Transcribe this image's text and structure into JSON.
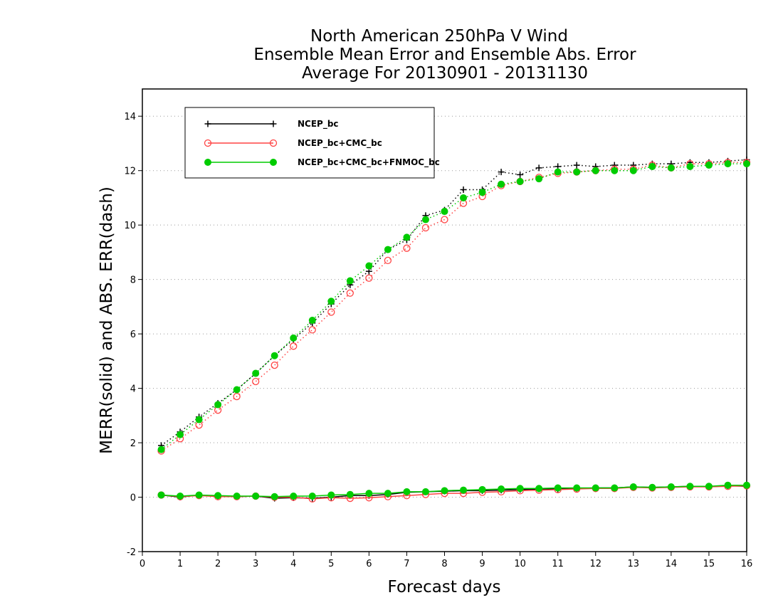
{
  "chart_data": {
    "type": "line",
    "title_lines": [
      "North American 250hPa V Wind",
      "Ensemble Mean Error and Ensemble Abs. Error",
      "Average For 20130901 - 20131130"
    ],
    "xlabel": "Forecast days",
    "ylabel": "MERR(solid) and ABS. ERR(dash)",
    "xlim": [
      0,
      16
    ],
    "ylim": [
      -2,
      15
    ],
    "xticks": [
      "0",
      "1",
      "2",
      "3",
      "4",
      "5",
      "6",
      "7",
      "8",
      "9",
      "10",
      "11",
      "12",
      "13",
      "14",
      "15",
      "16"
    ],
    "yticks": [
      "-2",
      "0",
      "2",
      "4",
      "6",
      "8",
      "10",
      "12",
      "14"
    ],
    "grid": "horizontal dotted at y-ticks",
    "legend_position": "top-left",
    "x": [
      0.5,
      1,
      1.5,
      2,
      2.5,
      3,
      3.5,
      4,
      4.5,
      5,
      5.5,
      6,
      6.5,
      7,
      7.5,
      8,
      8.5,
      9,
      9.5,
      10,
      10.5,
      11,
      11.5,
      12,
      12.5,
      13,
      13.5,
      14,
      14.5,
      15,
      15.5,
      16
    ],
    "series": [
      {
        "name": "NCEP_bc",
        "color": "#000000",
        "marker": "plus",
        "merr": [
          0.08,
          0.0,
          0.08,
          0.04,
          0.02,
          0.04,
          -0.04,
          -0.02,
          -0.04,
          0.0,
          0.06,
          0.06,
          0.1,
          0.18,
          0.2,
          0.22,
          0.24,
          0.24,
          0.26,
          0.28,
          0.3,
          0.3,
          0.32,
          0.34,
          0.34,
          0.38,
          0.36,
          0.38,
          0.4,
          0.38,
          0.42,
          0.4
        ],
        "abs_err": [
          1.9,
          2.4,
          2.95,
          3.45,
          3.95,
          4.55,
          5.2,
          5.8,
          6.4,
          7.1,
          7.8,
          8.3,
          9.1,
          9.45,
          10.35,
          10.55,
          11.3,
          11.3,
          11.95,
          11.85,
          12.1,
          12.15,
          12.2,
          12.15,
          12.2,
          12.2,
          12.25,
          12.25,
          12.3,
          12.3,
          12.35,
          12.4
        ]
      },
      {
        "name": "NCEP_bc+CMC_bc",
        "color": "#ff4444",
        "marker": "open-circle",
        "merr": [
          0.08,
          0.02,
          0.06,
          0.02,
          0.02,
          0.04,
          0.0,
          0.0,
          -0.06,
          -0.02,
          -0.04,
          -0.02,
          0.02,
          0.06,
          0.1,
          0.14,
          0.14,
          0.18,
          0.2,
          0.24,
          0.26,
          0.28,
          0.3,
          0.32,
          0.32,
          0.36,
          0.34,
          0.36,
          0.38,
          0.38,
          0.4,
          0.42
        ],
        "abs_err": [
          1.7,
          2.15,
          2.65,
          3.2,
          3.7,
          4.25,
          4.85,
          5.55,
          6.15,
          6.8,
          7.5,
          8.05,
          8.7,
          9.15,
          9.9,
          10.2,
          10.8,
          11.05,
          11.45,
          11.6,
          11.75,
          11.9,
          11.95,
          12.0,
          12.05,
          12.05,
          12.2,
          12.1,
          12.25,
          12.25,
          12.3,
          12.3
        ]
      },
      {
        "name": "NCEP_bc+CMC_bc+FNMOC_bc",
        "color": "#00cc00",
        "marker": "filled-circle",
        "merr": [
          0.08,
          0.04,
          0.08,
          0.06,
          0.04,
          0.04,
          0.02,
          0.04,
          0.04,
          0.08,
          0.1,
          0.14,
          0.14,
          0.2,
          0.2,
          0.24,
          0.26,
          0.28,
          0.3,
          0.32,
          0.32,
          0.34,
          0.34,
          0.34,
          0.34,
          0.38,
          0.36,
          0.38,
          0.4,
          0.4,
          0.44,
          0.44
        ],
        "abs_err": [
          1.75,
          2.3,
          2.85,
          3.4,
          3.95,
          4.55,
          5.2,
          5.85,
          6.5,
          7.2,
          7.95,
          8.5,
          9.1,
          9.55,
          10.2,
          10.5,
          11.0,
          11.2,
          11.5,
          11.6,
          11.7,
          11.95,
          11.95,
          12.0,
          12.0,
          12.0,
          12.15,
          12.1,
          12.15,
          12.2,
          12.25,
          12.25
        ]
      }
    ]
  }
}
